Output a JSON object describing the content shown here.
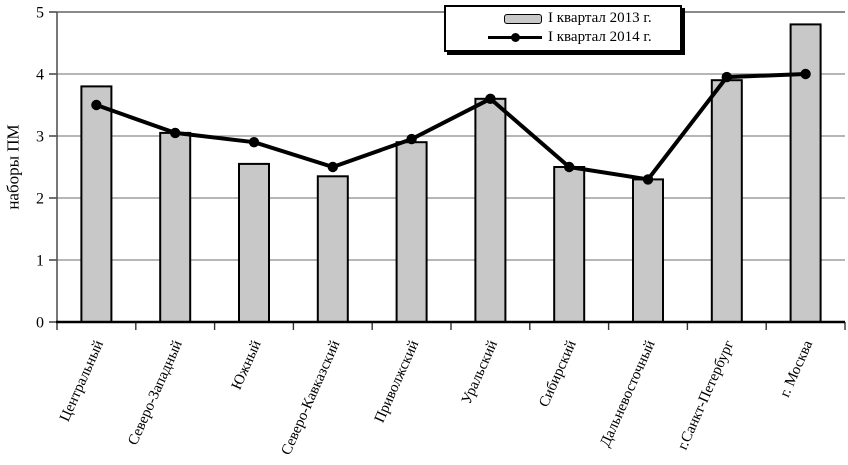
{
  "chart_data": {
    "type": "bar",
    "title": "",
    "categories": [
      "Центральный",
      "Северо-Западный",
      "Южный",
      "Северо-Кавказский",
      "Приволжский",
      "Уральский",
      "Сибирский",
      "Дальневосточный",
      "г.Санкт-Петербург",
      "г. Москва"
    ],
    "series": [
      {
        "name": "I квартал 2013 г.",
        "type": "bar",
        "values": [
          3.8,
          3.05,
          2.55,
          2.35,
          2.9,
          3.6,
          2.5,
          2.3,
          3.9,
          4.8
        ],
        "fill": "#c8c8c8",
        "stroke": "#000000"
      },
      {
        "name": "I квартал 2014 г.",
        "type": "line",
        "values": [
          3.5,
          3.05,
          2.9,
          2.5,
          2.95,
          3.6,
          2.5,
          2.3,
          3.95,
          4.0
        ],
        "color": "#000000",
        "marker": "circle"
      }
    ],
    "xlabel": "",
    "ylabel": "наборы ПМ",
    "ylim": [
      0,
      5
    ],
    "yticks": [
      0,
      1,
      2,
      3,
      4,
      5
    ],
    "grid": true,
    "gridline_color": "#8a8a8a",
    "legend_position": "top-center"
  }
}
